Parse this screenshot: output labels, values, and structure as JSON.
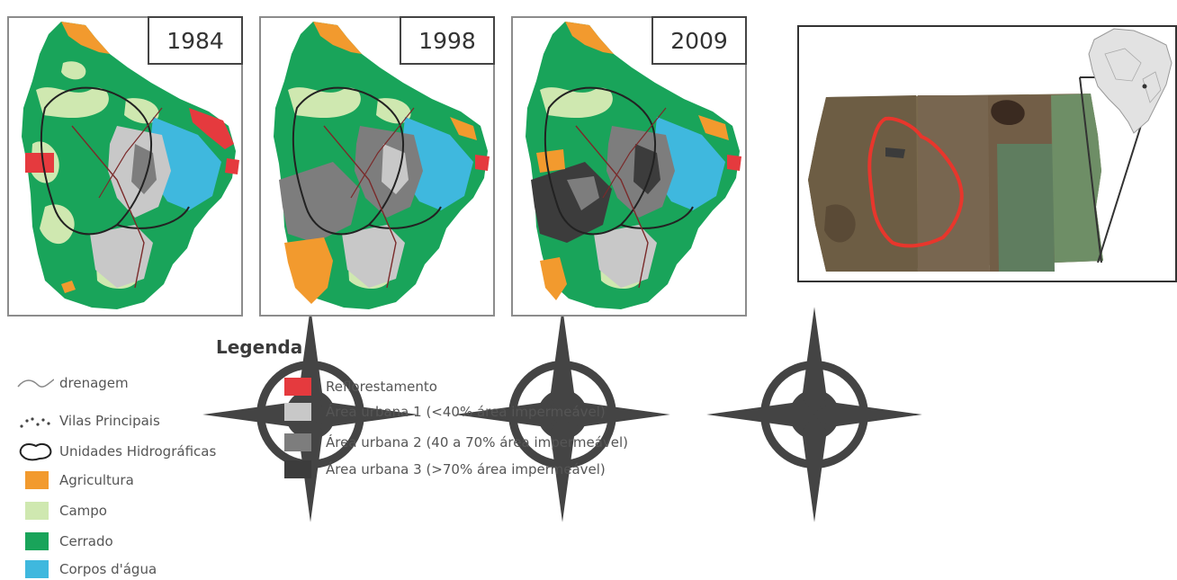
{
  "maps": [
    {
      "year": "1984"
    },
    {
      "year": "1998"
    },
    {
      "year": "2009"
    }
  ],
  "legend": {
    "title": "Legenda",
    "items": [
      {
        "label": "drenagem",
        "symbol": "line"
      },
      {
        "label": "Vilas Principais",
        "symbol": "dots"
      },
      {
        "label": "Unidades Hidrográficas",
        "symbol": "outline"
      },
      {
        "label": "Agricultura",
        "color": "#f29a2e"
      },
      {
        "label": "Campo",
        "color": "#cfe8b0"
      },
      {
        "label": "Cerrado",
        "color": "#19a45a"
      },
      {
        "label": "Corpos d'água",
        "color": "#3fb8de"
      },
      {
        "label": "Reflorestamento",
        "color": "#e53a3e"
      },
      {
        "label": "Área urbana 1 (<40% área impermeável)",
        "color": "#c8c8c8"
      },
      {
        "label": "Área urbana 2 (40 a 70% área impermeável)",
        "color": "#7d7d7d"
      },
      {
        "label": "Área urbana 3 (>70% área impermeável)",
        "color": "#3c3c3c"
      }
    ]
  },
  "colors": {
    "agricultura": "#f29a2e",
    "campo": "#cfe8b0",
    "cerrado": "#19a45a",
    "corpos_agua": "#3fb8de",
    "reflorestamento": "#e53a3e",
    "urbana1": "#c8c8c8",
    "urbana2": "#7d7d7d",
    "urbana3": "#3c3c3c",
    "study_area_outline": "#e8362c"
  },
  "icons": [
    "north-arrow-compass-icon",
    "drainage-line-icon",
    "village-dots-icon",
    "watershed-outline-icon"
  ]
}
